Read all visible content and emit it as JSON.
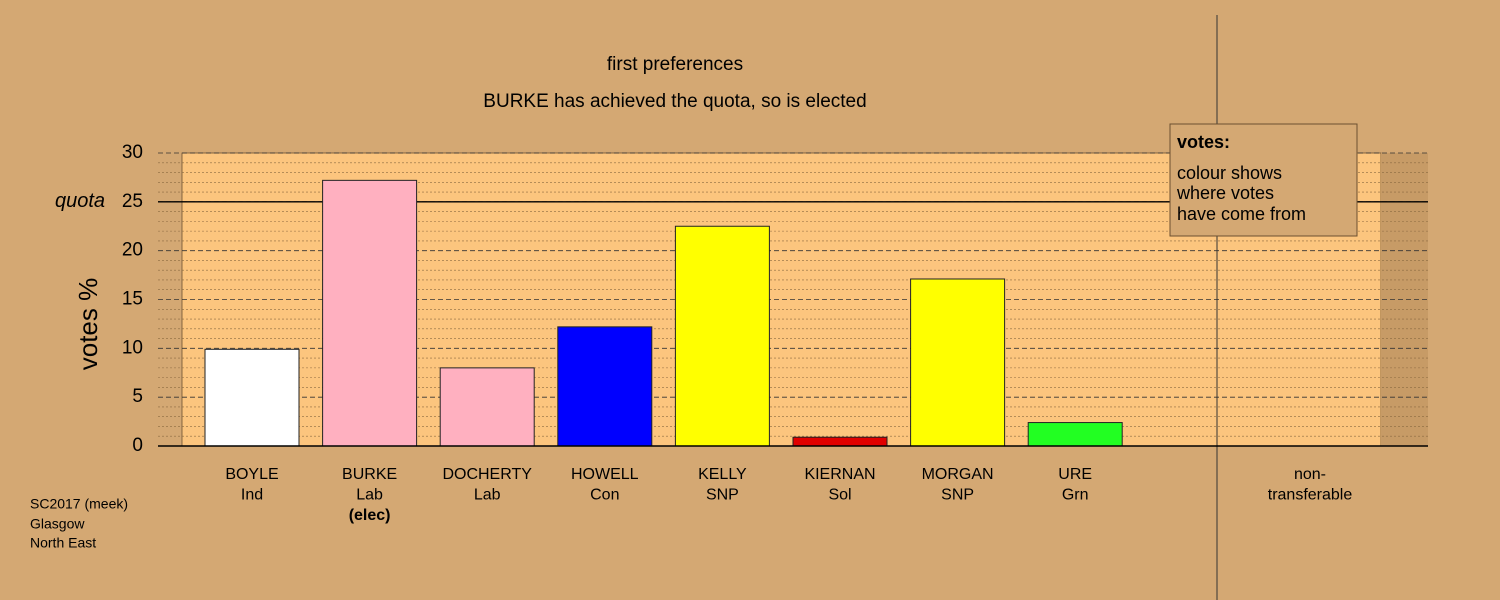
{
  "chart_data": {
    "type": "bar",
    "title": "first preferences",
    "subtitle": "BURKE has achieved the quota, so is elected",
    "y_label": "votes %",
    "categories": [
      [
        "BOYLE",
        "Ind"
      ],
      [
        "BURKE",
        "Lab",
        "(elec)"
      ],
      [
        "DOCHERTY",
        "Lab"
      ],
      [
        "HOWELL",
        "Con"
      ],
      [
        "KELLY",
        "SNP"
      ],
      [
        "KIERNAN",
        "Sol"
      ],
      [
        "MORGAN",
        "SNP"
      ],
      [
        "URE",
        "Grn"
      ],
      [
        "non-",
        "transferable"
      ]
    ],
    "values": [
      9.9,
      27.2,
      8.0,
      12.2,
      22.5,
      0.9,
      17.1,
      2.4,
      0
    ],
    "colors": [
      "#ffffff",
      "#ffb0c0",
      "#ffb0c0",
      "#0000ff",
      "#ffff00",
      "#e00000",
      "#ffff00",
      "#22ff22",
      "#d4a873"
    ],
    "ylim": [
      0,
      30
    ],
    "yticks": [
      0,
      5,
      10,
      15,
      20,
      25,
      30
    ],
    "minor_yticks": [
      1,
      2,
      3,
      4,
      6,
      7,
      8,
      9,
      11,
      12,
      13,
      14,
      16,
      17,
      18,
      19,
      21,
      22,
      23,
      24,
      26,
      27,
      28,
      29
    ],
    "quota": {
      "value": 25,
      "label": "quota"
    },
    "legend": {
      "title": "votes:",
      "lines": [
        "colour shows",
        "where votes",
        "have come from"
      ]
    },
    "footnote": [
      "SC2017 (meek)",
      "Glasgow",
      "North East"
    ]
  }
}
